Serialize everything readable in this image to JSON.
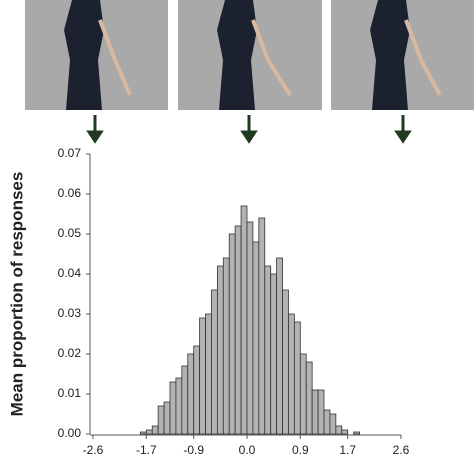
{
  "chart_data": {
    "type": "histogram",
    "y_label": "Mean proportion of responses",
    "bins": [
      -1.8,
      -1.7,
      -1.6,
      -1.5,
      -1.4,
      -1.3,
      -1.2,
      -1.1,
      -1.0,
      -0.9,
      -0.8,
      -0.7,
      -0.6,
      -0.5,
      -0.4,
      -0.3,
      -0.2,
      -0.1,
      0.0,
      0.1,
      0.2,
      0.3,
      0.4,
      0.5,
      0.6,
      0.7,
      0.8,
      0.9,
      1.0,
      1.1,
      1.2,
      1.3,
      1.4,
      1.5,
      1.6,
      1.7,
      1.8,
      1.9,
      2.0
    ],
    "counts": [
      0.0005,
      0.001,
      0.002,
      0.007,
      0.008,
      0.013,
      0.014,
      0.017,
      0.02,
      0.022,
      0.029,
      0.03,
      0.036,
      0.042,
      0.044,
      0.05,
      0.052,
      0.057,
      0.053,
      0.048,
      0.054,
      0.042,
      0.04,
      0.044,
      0.036,
      0.03,
      0.028,
      0.02,
      0.018,
      0.011,
      0.011,
      0.006,
      0.005,
      0.002,
      0.001,
      0,
      0.0005,
      0
    ],
    "color": "#b3b3b3",
    "xlim": [
      -2.6,
      2.6
    ],
    "xticks": [
      -2.6,
      -1.7,
      -0.9,
      {
        "value": 0,
        "label": "0.0"
      },
      0.9,
      1.7,
      2.6
    ],
    "ylim": [
      0,
      0.07
    ],
    "yticks": [
      {
        "value": 0,
        "label": "0.00"
      },
      {
        "value": 0.01,
        "label": "0.01"
      },
      {
        "value": 0.02,
        "label": "0.02"
      },
      {
        "value": 0.03,
        "label": "0.03"
      },
      {
        "value": 0.04,
        "label": "0.04"
      },
      {
        "value": 0.05,
        "label": "0.05"
      },
      {
        "value": 0.06,
        "label": "0.06"
      },
      {
        "value": 0.07,
        "label": "0.07"
      }
    ]
  }
}
